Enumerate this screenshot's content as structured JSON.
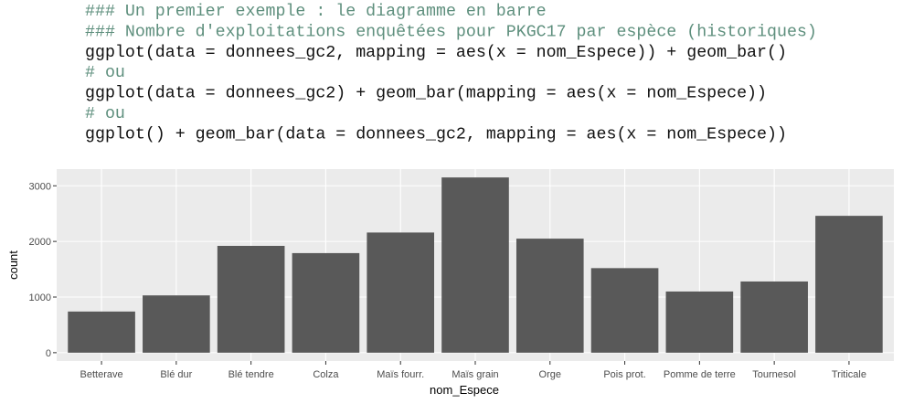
{
  "code": [
    "### Un premier exemple : le diagramme en barre",
    "### Nombre d'exploitations enquêtées pour PKGC17 par espèce (historiques)",
    "ggplot(data = donnees_gc2, mapping = aes(x = nom_Espece)) + geom_bar()",
    "# ou",
    "ggplot(data = donnees_gc2) + geom_bar(mapping = aes(x = nom_Espece))",
    "# ou",
    "ggplot() + geom_bar(data = donnees_gc2, mapping = aes(x = nom_Espece))"
  ],
  "chart_data": {
    "type": "bar",
    "x_label": "nom_Espece",
    "y_label": "count",
    "categories": [
      "Betterave",
      "Blé dur",
      "Blé tendre",
      "Colza",
      "Maïs fourr.",
      "Maïs grain",
      "Orge",
      "Pois prot.",
      "Pomme de terre",
      "Tournesol",
      "Triticale"
    ],
    "values": [
      740,
      1030,
      1920,
      1790,
      2160,
      3150,
      2050,
      1520,
      1100,
      1280,
      2460
    ],
    "color": "#595959",
    "ylim": [
      -150,
      3300
    ],
    "yticks": [
      0,
      1000,
      2000,
      3000
    ],
    "grid": true
  }
}
